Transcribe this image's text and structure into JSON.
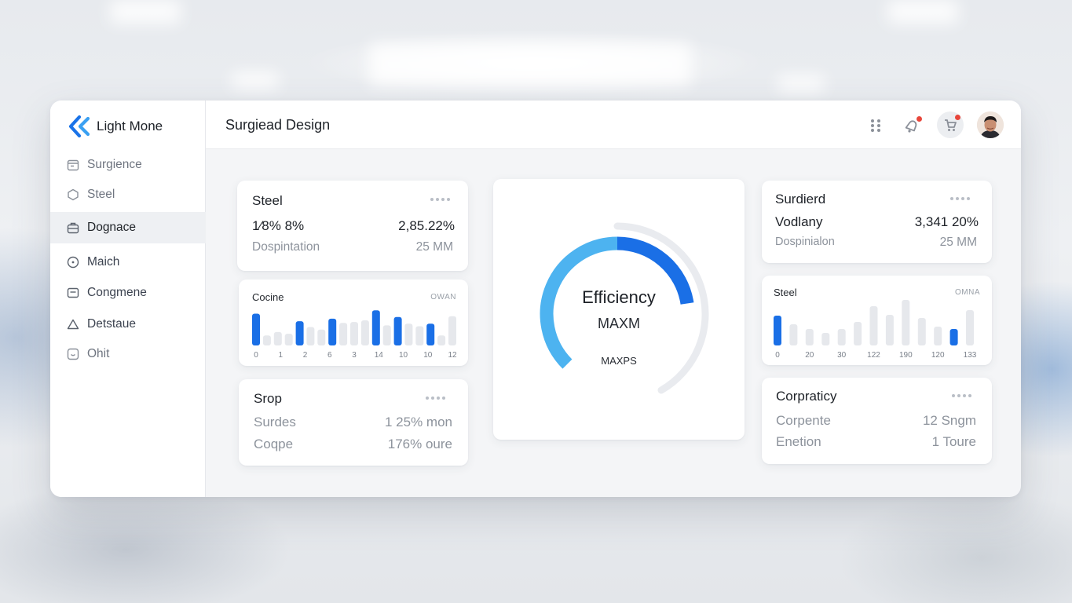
{
  "brand": {
    "name": "Light Mone",
    "logo_icon": "chevron-left-double-icon",
    "accent": "#1a73e8"
  },
  "sidebar": {
    "items": [
      {
        "label": "Surgience",
        "icon": "calendar-icon",
        "state": "muted"
      },
      {
        "label": "Steel",
        "icon": "hexagon-icon",
        "state": "muted"
      },
      {
        "label": "Dognace",
        "icon": "briefcase-icon",
        "state": "active"
      },
      {
        "label": "Maich",
        "icon": "info-circle-icon",
        "state": "normal"
      },
      {
        "label": "Congmene",
        "icon": "message-square-icon",
        "state": "normal"
      },
      {
        "label": "Detstaue",
        "icon": "home-icon",
        "state": "normal"
      },
      {
        "label": "Ohit",
        "icon": "smile-square-icon",
        "state": "muted"
      }
    ]
  },
  "header": {
    "title": "Surgiead Design",
    "icons": [
      "apps-grid-icon",
      "bell-icon",
      "cart-icon",
      "user-avatar"
    ],
    "notification_color": "#e8463b"
  },
  "cards": {
    "steel_stats": {
      "title": "Steel",
      "left_value": "1⁄8% 8%",
      "right_value": "2,85.22%",
      "left_sub": "Dospintation",
      "right_sub": "25 MM"
    },
    "srop": {
      "title": "Srop",
      "row1_left": "Surdes",
      "row1_right": "1 25% mon",
      "row2_left": "Coqpe",
      "row2_right": "176% oure"
    },
    "surdierd": {
      "title": "Surdierd",
      "left_value": "Vodlany",
      "right_value": "3,341 20%",
      "left_sub": "Dospinialon",
      "right_sub": "25 MM"
    },
    "corpraticy": {
      "title": "Corpraticy",
      "row1_left": "Corpente",
      "row1_right": "12 Sngm",
      "row2_left": "Enetion",
      "row2_right": "1 Toure"
    }
  },
  "gauge": {
    "title": "Efficiency",
    "subtitle": "MAXM",
    "footer": "MAXPS",
    "fill_fraction": 0.72,
    "colors": {
      "light": "#4db3f0",
      "dark": "#1a6fe6",
      "track": "#e9ebef"
    }
  },
  "chart_data": [
    {
      "type": "bar",
      "title": "Cocine",
      "tag": "OWAN",
      "x_tick_labels": [
        "0",
        "1",
        "2",
        "6",
        "3",
        "14",
        "10",
        "10",
        "12"
      ],
      "values": [
        38,
        12,
        16,
        14,
        29,
        22,
        19,
        32,
        27,
        28,
        30,
        42,
        24,
        34,
        26,
        23,
        26,
        12,
        35
      ],
      "highlighted": [
        true,
        false,
        false,
        false,
        true,
        false,
        false,
        true,
        false,
        false,
        false,
        true,
        false,
        true,
        false,
        false,
        true,
        false,
        false
      ],
      "colors": {
        "highlight": "#1a6fe6",
        "normal": "#e6e8ec"
      },
      "ylim": [
        0,
        45
      ]
    },
    {
      "type": "bar",
      "title": "Steel",
      "tag": "OMNA",
      "x_tick_labels": [
        "0",
        "20",
        "30",
        "122",
        "190",
        "120",
        "133"
      ],
      "values": [
        38,
        27,
        21,
        16,
        21,
        30,
        50,
        39,
        58,
        35,
        24,
        21,
        45
      ],
      "highlighted": [
        true,
        false,
        false,
        false,
        false,
        false,
        false,
        false,
        false,
        false,
        false,
        true,
        false
      ],
      "colors": {
        "highlight": "#1a6fe6",
        "normal": "#e6e8ec"
      },
      "ylim": [
        0,
        60
      ]
    }
  ]
}
